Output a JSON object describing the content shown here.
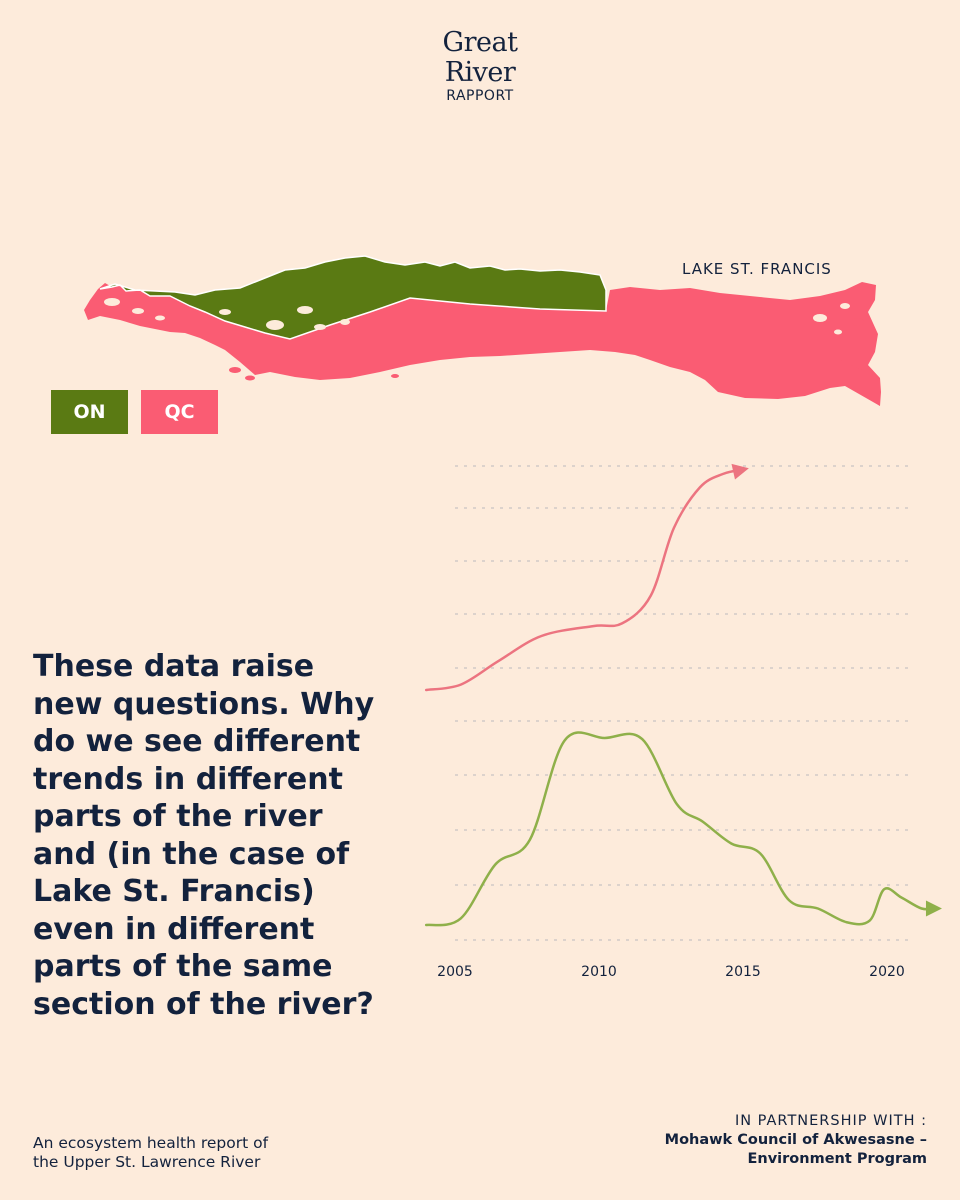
{
  "brand": {
    "line1": "Great",
    "line2": "River",
    "line3": "RAPPORT"
  },
  "map": {
    "label": "LAKE ST. FRANCIS",
    "legend": [
      {
        "code": "ON",
        "color": "#5a7a13"
      },
      {
        "code": "QC",
        "color": "#fa5c73"
      }
    ]
  },
  "chart_data": {
    "type": "line",
    "x_ticks": [
      "2005",
      "2010",
      "2015",
      "2020"
    ],
    "grid": true,
    "series": [
      {
        "color": "#ec7480",
        "points": [
          [
            2004.0,
            0.0
          ],
          [
            2005.2,
            0.06
          ],
          [
            2006.5,
            0.32
          ],
          [
            2008.0,
            0.6
          ],
          [
            2009.8,
            0.71
          ],
          [
            2010.8,
            0.74
          ],
          [
            2011.8,
            1.05
          ],
          [
            2012.6,
            1.8
          ],
          [
            2013.5,
            2.25
          ],
          [
            2014.3,
            2.4
          ],
          [
            2015.0,
            2.45
          ]
        ]
      },
      {
        "color": "#8fb04a",
        "points": [
          [
            2004.0,
            0.0
          ],
          [
            2005.2,
            0.12
          ],
          [
            2006.4,
            1.1
          ],
          [
            2007.6,
            1.55
          ],
          [
            2008.8,
            3.35
          ],
          [
            2010.2,
            3.4
          ],
          [
            2011.5,
            3.38
          ],
          [
            2012.7,
            2.2
          ],
          [
            2013.6,
            1.88
          ],
          [
            2014.6,
            1.48
          ],
          [
            2015.6,
            1.3
          ],
          [
            2016.6,
            0.45
          ],
          [
            2017.6,
            0.3
          ],
          [
            2018.6,
            0.05
          ],
          [
            2019.4,
            0.08
          ],
          [
            2019.9,
            0.65
          ],
          [
            2020.5,
            0.5
          ],
          [
            2021.2,
            0.3
          ],
          [
            2021.7,
            0.3
          ]
        ]
      }
    ]
  },
  "question": "These data raise new questions. Why do we see different trends in different parts of the river and (in the case of Lake St. Francis) even in different parts of the same section of the river?",
  "footer": {
    "left_line1": "An ecosystem health report of",
    "left_line2": "the Upper St. Lawrence River",
    "partner_tag": "IN PARTNERSHIP WITH :",
    "partner_line1": "Mohawk Council of Akwesasne –",
    "partner_line2": "Environment Program"
  }
}
